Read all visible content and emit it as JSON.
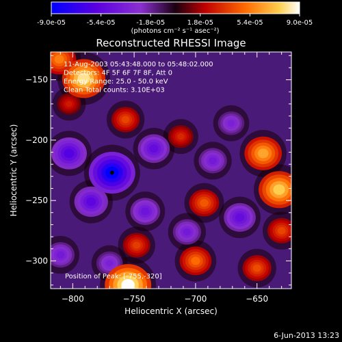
{
  "colorbar": {
    "tick_labels": [
      "-9.0e-05",
      "-5.4e-05",
      "-1.8e-05",
      "1.8e-05",
      "5.4e-05",
      "9.0e-05"
    ],
    "range": [
      -9e-05,
      9e-05
    ],
    "unit_label": "(photons cm⁻² s⁻¹ asec⁻²)",
    "colors": [
      "#0000ff",
      "#5a00e0",
      "#8a30d0",
      "#1a0010",
      "#c00000",
      "#ff6a00",
      "#ffd050",
      "#ffffff"
    ]
  },
  "chart_data": {
    "type": "heatmap",
    "title": "Reconstructed RHESSI Image",
    "xlabel": "Heliocentric X (arcsec)",
    "ylabel": "Heliocentric Y (arcsec)",
    "xlim": [
      -818,
      -622
    ],
    "ylim": [
      -323,
      -127
    ],
    "x_ticks": [
      -800,
      -750,
      -700,
      -650
    ],
    "y_ticks": [
      -150,
      -200,
      -250,
      -300
    ],
    "grid": false,
    "info_lines": [
      "11-Aug-2003 05:43:48.000 to 05:48:02.000",
      "Detectors: 4F 5F 6F 7F 8F, Att 0",
      "Energy Range: 25.0 - 50.0 keV",
      "Clean     Total counts: 3.10E+03"
    ],
    "peak_label": "Position of Peak: [-755,-320]",
    "peak_position": [
      -755,
      -320
    ],
    "peak_value": 9e-05,
    "features": [
      {
        "x": -755,
        "y": -320,
        "value": 9e-05
      },
      {
        "x": -791,
        "y": -149,
        "value": 8.1e-05
      },
      {
        "x": -632,
        "y": -241,
        "value": 7.5e-05
      },
      {
        "x": -645,
        "y": -211,
        "value": 6.5e-05
      },
      {
        "x": -757,
        "y": -183,
        "value": 4e-05
      },
      {
        "x": -700,
        "y": -300,
        "value": 5e-05
      },
      {
        "x": -693,
        "y": -252,
        "value": 4.5e-05
      },
      {
        "x": -712,
        "y": -197,
        "value": 3.2e-05
      },
      {
        "x": -650,
        "y": -306,
        "value": 4.2e-05
      },
      {
        "x": -803,
        "y": -170,
        "value": 2.8e-05
      },
      {
        "x": -811,
        "y": -133,
        "value": 5.5e-05
      },
      {
        "x": -748,
        "y": -287,
        "value": 3.8e-05
      },
      {
        "x": -630,
        "y": -275,
        "value": 4e-05
      },
      {
        "x": -768,
        "y": -227,
        "value": -9e-05
      },
      {
        "x": -803,
        "y": -211,
        "value": -6e-05
      },
      {
        "x": -785,
        "y": -251,
        "value": -5.5e-05
      },
      {
        "x": -734,
        "y": -207,
        "value": -5e-05
      },
      {
        "x": -664,
        "y": -264,
        "value": -5e-05
      },
      {
        "x": -741,
        "y": -259,
        "value": -4.5e-05
      },
      {
        "x": -686,
        "y": -217,
        "value": -4e-05
      },
      {
        "x": -810,
        "y": -295,
        "value": -4e-05
      },
      {
        "x": -671,
        "y": -186,
        "value": -3.5e-05
      },
      {
        "x": -707,
        "y": -276,
        "value": -4e-05
      },
      {
        "x": -770,
        "y": -302,
        "value": -3.5e-05
      }
    ]
  },
  "footer": {
    "date_stamp": "6-Jun-2013 13:23"
  }
}
